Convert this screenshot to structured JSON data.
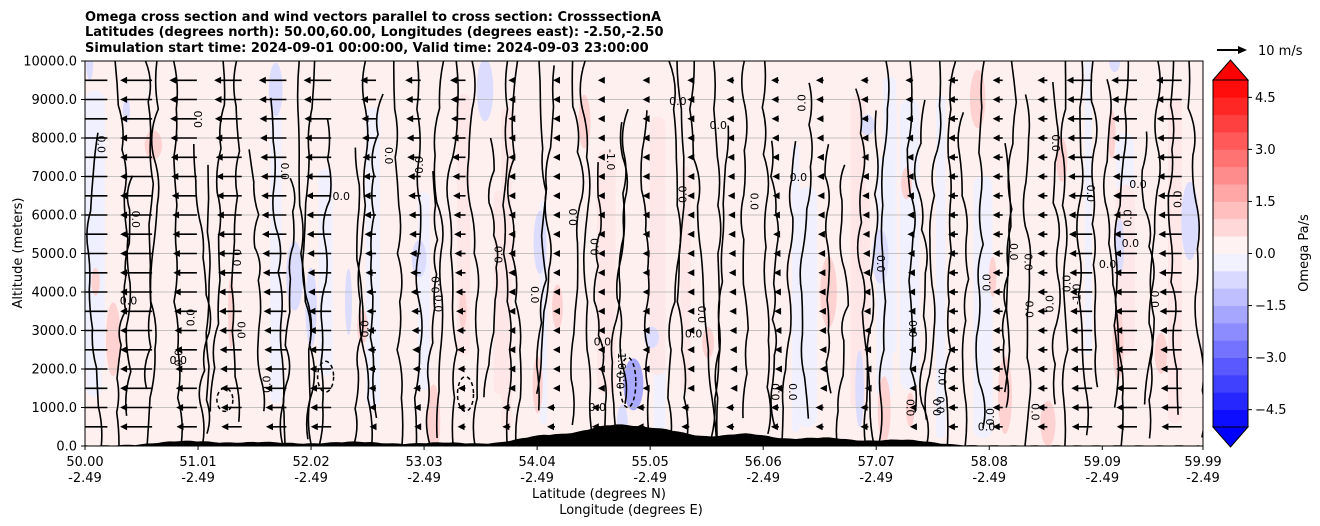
{
  "chart_data": {
    "type": "heatmap",
    "title_lines": [
      "Omega cross section and wind vectors parallel to cross section: CrosssectionA",
      "Latitudes (degrees north): 50.00,60.00, Longitudes (degrees east): -2.50,-2.50",
      "Simulation start time: 2024-09-01 00:00:00, Valid time: 2024-09-03 23:00:00"
    ],
    "ylabel": "Altitude (meters)",
    "xlabel_lat": "Latitude (degrees N)",
    "xlabel_lon": "Longitude (degrees E)",
    "ylim": [
      0,
      10000
    ],
    "y_ticks": [
      {
        "value": 0,
        "label": "0.0"
      },
      {
        "value": 1000,
        "label": "1000.0"
      },
      {
        "value": 2000,
        "label": "2000.0"
      },
      {
        "value": 3000,
        "label": "3000.0"
      },
      {
        "value": 4000,
        "label": "4000.0"
      },
      {
        "value": 5000,
        "label": "5000.0"
      },
      {
        "value": 6000,
        "label": "6000.0"
      },
      {
        "value": 7000,
        "label": "7000.0"
      },
      {
        "value": 8000,
        "label": "8000.0"
      },
      {
        "value": 9000,
        "label": "9000.0"
      },
      {
        "value": 10000,
        "label": "10000.0"
      }
    ],
    "xlim": [
      50.0,
      59.99
    ],
    "x_ticks": [
      {
        "lat": 50.0,
        "lat_label": "50.00",
        "lon_label": "-2.49"
      },
      {
        "lat": 51.01,
        "lat_label": "51.01",
        "lon_label": "-2.49"
      },
      {
        "lat": 52.02,
        "lat_label": "52.02",
        "lon_label": "-2.49"
      },
      {
        "lat": 53.03,
        "lat_label": "53.03",
        "lon_label": "-2.49"
      },
      {
        "lat": 54.04,
        "lat_label": "54.04",
        "lon_label": "-2.49"
      },
      {
        "lat": 55.05,
        "lat_label": "55.05",
        "lon_label": "-2.49"
      },
      {
        "lat": 56.06,
        "lat_label": "56.06",
        "lon_label": "-2.49"
      },
      {
        "lat": 57.07,
        "lat_label": "57.07",
        "lon_label": "-2.49"
      },
      {
        "lat": 58.08,
        "lat_label": "58.08",
        "lon_label": "-2.49"
      },
      {
        "lat": 59.09,
        "lat_label": "59.09",
        "lon_label": "-2.49"
      },
      {
        "lat": 59.99,
        "lat_label": "59.99",
        "lon_label": "-2.49"
      }
    ],
    "colorbar": {
      "label": "Omega Pa/s",
      "range": [
        -5,
        5
      ],
      "ticks": [
        {
          "value": 4.5,
          "label": "4.5"
        },
        {
          "value": 3.0,
          "label": "3.0"
        },
        {
          "value": 1.5,
          "label": "1.5"
        },
        {
          "value": 0.0,
          "label": "0.0"
        },
        {
          "value": -1.5,
          "label": "−1.5"
        },
        {
          "value": -3.0,
          "label": "−3.0"
        },
        {
          "value": -4.5,
          "label": "−4.5"
        }
      ],
      "extend": "both",
      "colormap": "bwr",
      "levels": 20
    },
    "quiver_key": {
      "label": "10 m/s",
      "speed": 10
    },
    "contour_labels": [
      "0.0",
      "-1.0"
    ],
    "terrain_peaks": [
      {
        "lat": 50.9,
        "alt": 120
      },
      {
        "lat": 51.6,
        "alt": 90
      },
      {
        "lat": 52.4,
        "alt": 100
      },
      {
        "lat": 53.2,
        "alt": 80
      },
      {
        "lat": 54.1,
        "alt": 250
      },
      {
        "lat": 54.7,
        "alt": 480
      },
      {
        "lat": 55.2,
        "alt": 350
      },
      {
        "lat": 55.9,
        "alt": 300
      },
      {
        "lat": 56.6,
        "alt": 200
      },
      {
        "lat": 57.3,
        "alt": 150
      }
    ]
  }
}
